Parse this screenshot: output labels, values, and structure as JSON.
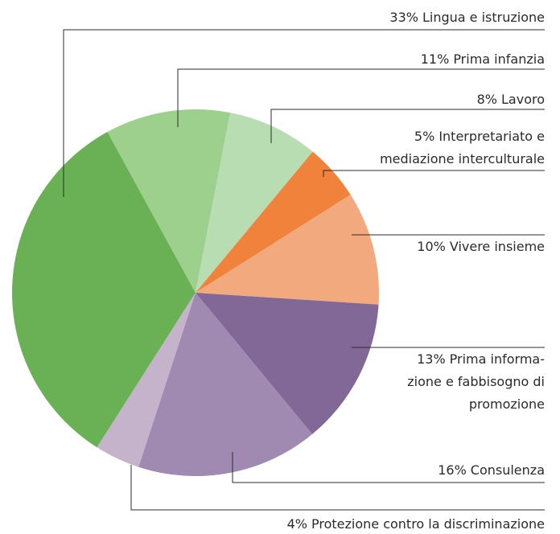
{
  "chart_data": {
    "type": "pie",
    "categories": [
      [
        "Lingua e istruzione"
      ],
      [
        "Prima infanzia"
      ],
      [
        "Lavoro"
      ],
      [
        "Interpretariato e",
        "mediazione interculturale"
      ],
      [
        "Vivere insieme"
      ],
      [
        "Prima informa-",
        "zione e fabbisogno di",
        "promozione"
      ],
      [
        "Consulenza"
      ],
      [
        "Protezione contro la discriminazione"
      ]
    ],
    "values": [
      33,
      11,
      8,
      5,
      10,
      13,
      16,
      4
    ],
    "value_labels": [
      "33%",
      "11%",
      "8%",
      "5%",
      "10%",
      "13%",
      "16%",
      "4%"
    ],
    "colors": [
      "#6ab155",
      "#9dd08c",
      "#b9ddb3",
      "#f0823c",
      "#f3a97e",
      "#816897",
      "#a08ab2",
      "#c5b3cc"
    ]
  }
}
